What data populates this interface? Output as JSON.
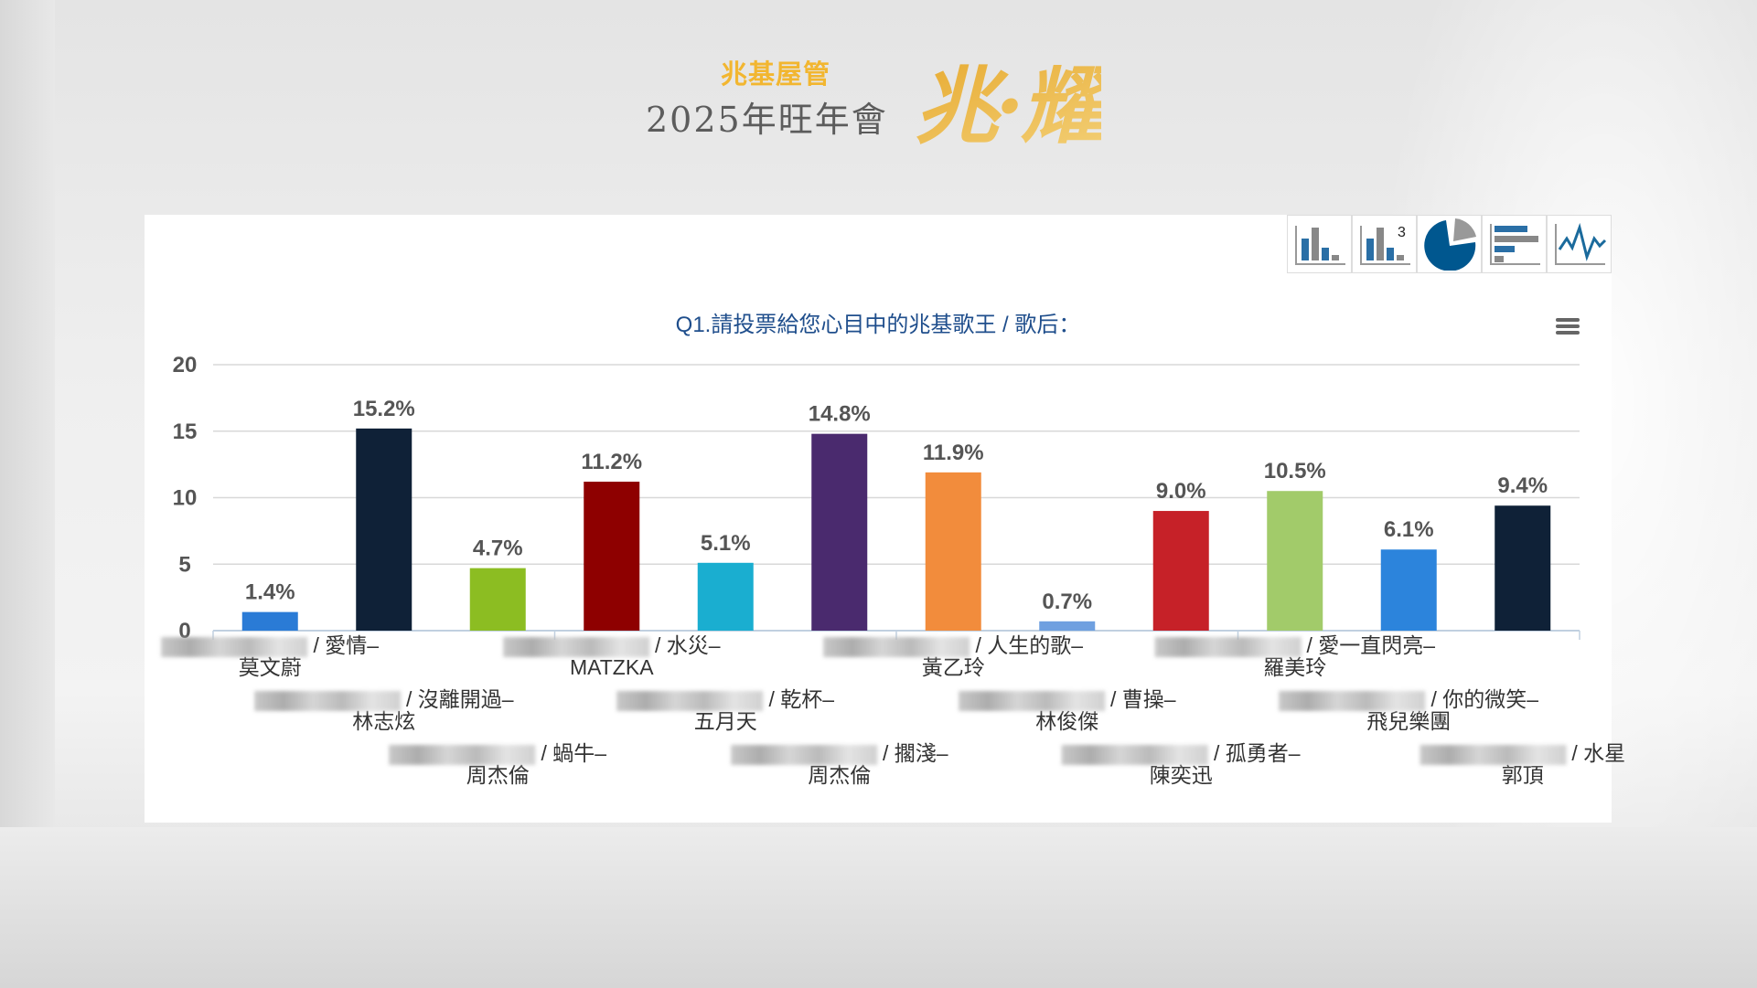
{
  "header": {
    "brand": "兆基屋管",
    "event": "2025年旺年會",
    "logo_text": "兆·耀"
  },
  "toolbar": [
    {
      "icon": "bar-chart-icon"
    },
    {
      "icon": "bar-chart-top3-icon",
      "badge": "3"
    },
    {
      "icon": "pie-chart-icon"
    },
    {
      "icon": "horizontal-bar-chart-icon"
    },
    {
      "icon": "line-chart-icon"
    }
  ],
  "chart_data": {
    "type": "bar",
    "title": "Q1.請投票給您心目中的兆基歌王 / 歌后：",
    "ylim": [
      0,
      20
    ],
    "yticks": [
      "0",
      "5",
      "10",
      "15",
      "20"
    ],
    "grid": true,
    "categories": [
      {
        "song": "/ 愛情–",
        "artist": "莫文蔚"
      },
      {
        "song": "/ 沒離開過–",
        "artist": "林志炫"
      },
      {
        "song": "/ 蝸牛–",
        "artist": "周杰倫"
      },
      {
        "song": "/ 水災–",
        "artist": "MATZKA"
      },
      {
        "song": "/ 乾杯–",
        "artist": "五月天"
      },
      {
        "song": "/ 擱淺–",
        "artist": "周杰倫"
      },
      {
        "song": "/ 人生的歌–",
        "artist": "黃乙玲"
      },
      {
        "song": "/ 曹操–",
        "artist": "林俊傑"
      },
      {
        "song": "/ 孤勇者–",
        "artist": "陳奕迅"
      },
      {
        "song": "/ 愛一直閃亮–",
        "artist": "羅美玲"
      },
      {
        "song": "/ 你的微笑–",
        "artist": "飛兒樂團"
      },
      {
        "song": "/ 水星",
        "artist": "郭頂"
      }
    ],
    "values": [
      1.4,
      15.2,
      4.7,
      11.2,
      5.1,
      14.8,
      11.9,
      0.7,
      9.0,
      10.5,
      6.1,
      9.4
    ],
    "data_labels": [
      "1.4%",
      "15.2%",
      "4.7%",
      "11.2%",
      "5.1%",
      "14.8%",
      "11.9%",
      "0.7%",
      "9.0%",
      "10.5%",
      "6.1%",
      "9.4%"
    ],
    "colors": [
      "#2a7bd6",
      "#0f2137",
      "#8cbd22",
      "#8e0000",
      "#1aaed0",
      "#4a2a6e",
      "#f28c3c",
      "#6fa0e0",
      "#c62128",
      "#a2cb6a",
      "#2c84dc",
      "#0f2137"
    ]
  }
}
